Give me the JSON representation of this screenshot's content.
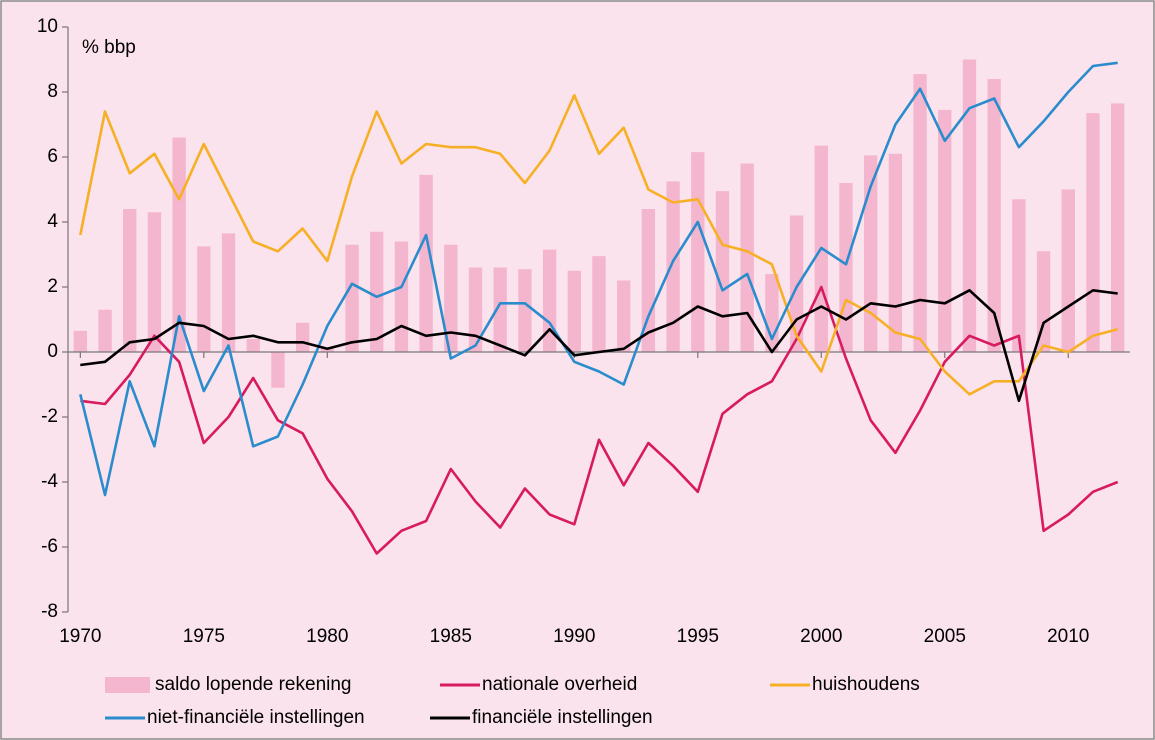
{
  "chart_data": {
    "type": "combo",
    "annotation": "% bbp",
    "x": [
      1970,
      1971,
      1972,
      1973,
      1974,
      1975,
      1976,
      1977,
      1978,
      1979,
      1980,
      1981,
      1982,
      1983,
      1984,
      1985,
      1986,
      1987,
      1988,
      1989,
      1990,
      1991,
      1992,
      1993,
      1994,
      1995,
      1996,
      1997,
      1998,
      1999,
      2000,
      2001,
      2002,
      2003,
      2004,
      2005,
      2006,
      2007,
      2008,
      2009,
      2010,
      2011,
      2012
    ],
    "xlim": [
      1969.5,
      2012.5
    ],
    "xticks": [
      1970,
      1975,
      1980,
      1985,
      1990,
      1995,
      2000,
      2005,
      2010
    ],
    "ylim": [
      -8,
      10
    ],
    "yticks": [
      -8,
      -6,
      -4,
      -2,
      0,
      2,
      4,
      6,
      8,
      10
    ],
    "series": [
      {
        "name": "saldo lopende rekening",
        "type": "bar",
        "color": "#f4b6cf",
        "values": [
          0.65,
          1.3,
          4.4,
          4.3,
          6.6,
          3.25,
          3.65,
          0.4,
          -1.1,
          0.9,
          0.1,
          3.3,
          3.7,
          3.4,
          5.45,
          3.3,
          2.6,
          2.6,
          2.55,
          3.15,
          2.5,
          2.95,
          2.2,
          4.4,
          5.25,
          6.15,
          4.95,
          5.8,
          2.4,
          4.2,
          6.35,
          5.2,
          6.05,
          6.1,
          8.55,
          7.45,
          9.0,
          8.4,
          4.7,
          3.1,
          5.0,
          7.35,
          7.65
        ]
      },
      {
        "name": "nationale overheid",
        "type": "line",
        "color": "#d81b60",
        "values": [
          -1.5,
          -1.6,
          -0.7,
          0.5,
          -0.3,
          -2.8,
          -2.0,
          -0.8,
          -2.1,
          -2.5,
          -3.9,
          -4.9,
          -6.2,
          -5.5,
          -5.2,
          -3.6,
          -4.6,
          -5.4,
          -4.2,
          -5.0,
          -5.3,
          -2.7,
          -4.1,
          -2.8,
          -3.5,
          -4.3,
          -1.9,
          -1.3,
          -0.9,
          0.4,
          2.0,
          -0.2,
          -2.1,
          -3.1,
          -1.8,
          -0.3,
          0.5,
          0.2,
          0.5,
          -5.5,
          -5.0,
          -4.3,
          -4.0
        ]
      },
      {
        "name": "huishoudens",
        "type": "line",
        "color": "#f7b026",
        "values": [
          3.6,
          7.4,
          5.5,
          6.1,
          4.7,
          6.4,
          4.9,
          3.4,
          3.1,
          3.8,
          2.8,
          5.4,
          7.4,
          5.8,
          6.4,
          6.3,
          6.3,
          6.1,
          5.2,
          6.2,
          7.9,
          6.1,
          6.9,
          5.0,
          4.6,
          4.7,
          3.3,
          3.1,
          2.7,
          0.5,
          -0.6,
          1.6,
          1.2,
          0.6,
          0.4,
          -0.6,
          -1.3,
          -0.9,
          -0.9,
          0.2,
          0.0,
          0.5,
          0.7
        ]
      },
      {
        "name": "niet-financiële instellingen",
        "type": "line",
        "color": "#2b8ccd",
        "values": [
          -1.3,
          -4.4,
          -0.9,
          -2.9,
          1.1,
          -1.2,
          0.2,
          -2.9,
          -2.6,
          -1.0,
          0.8,
          2.1,
          1.7,
          2.0,
          3.6,
          -0.2,
          0.2,
          1.5,
          1.5,
          0.9,
          -0.3,
          -0.6,
          -1.0,
          1.1,
          2.8,
          4.0,
          1.9,
          2.4,
          0.4,
          2.0,
          3.2,
          2.7,
          5.1,
          7.0,
          8.1,
          6.5,
          7.5,
          7.8,
          6.3,
          7.1,
          8.0,
          8.8,
          8.9
        ]
      },
      {
        "name": "financiële instellingen",
        "type": "line",
        "color": "#000000",
        "values": [
          -0.4,
          -0.3,
          0.3,
          0.4,
          0.9,
          0.8,
          0.4,
          0.5,
          0.3,
          0.3,
          0.1,
          0.3,
          0.4,
          0.8,
          0.5,
          0.6,
          0.5,
          0.2,
          -0.1,
          0.7,
          -0.1,
          0.0,
          0.1,
          0.6,
          0.9,
          1.4,
          1.1,
          1.2,
          0.0,
          1.0,
          1.4,
          1.0,
          1.5,
          1.4,
          1.6,
          1.5,
          1.9,
          1.2,
          -1.5,
          0.9,
          1.4,
          1.9,
          1.8
        ]
      }
    ]
  }
}
